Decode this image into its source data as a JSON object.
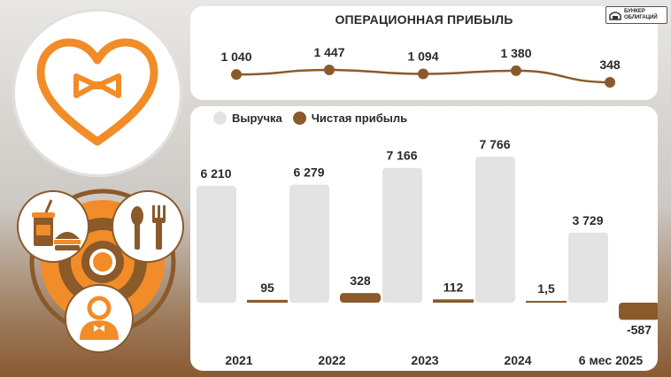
{
  "brand": {
    "line1": "БУНКЕР",
    "line2": "ОБЛИГАЦИЙ"
  },
  "colors": {
    "revenue": "#e3e3e3",
    "profit": "#8b5a2b",
    "operating": "#8b5a2b",
    "accent": "#f28c28"
  },
  "icons": [
    "heart-bowtie-logo-icon",
    "fast-food-icon",
    "spoon-fork-icon",
    "waiter-icon"
  ],
  "chart_data": [
    {
      "type": "line",
      "title": "ОПЕРАЦИОННАЯ ПРИБЫЛЬ",
      "categories": [
        "2021",
        "2022",
        "2023",
        "2024",
        "6 мес 2025"
      ],
      "values": [
        1040,
        1447,
        1094,
        1380,
        348
      ],
      "value_labels": [
        "1 040",
        "1 447",
        "1 094",
        "1 380",
        "348"
      ],
      "grid": false
    },
    {
      "type": "bar",
      "categories": [
        "2021",
        "2022",
        "2023",
        "2024",
        "6 мес 2025"
      ],
      "legend": "top-left",
      "grid": false,
      "series": [
        {
          "name": "Выручка",
          "values": [
            6210,
            6279,
            7166,
            7766,
            3729
          ],
          "labels": [
            "6 210",
            "6 279",
            "7 166",
            "7 766",
            "3 729"
          ]
        },
        {
          "name": "Чистая прибыль",
          "values": [
            95,
            328,
            112,
            1.5,
            -587
          ],
          "labels": [
            "95",
            "328",
            "112",
            "1,5",
            "-587"
          ]
        }
      ]
    }
  ]
}
